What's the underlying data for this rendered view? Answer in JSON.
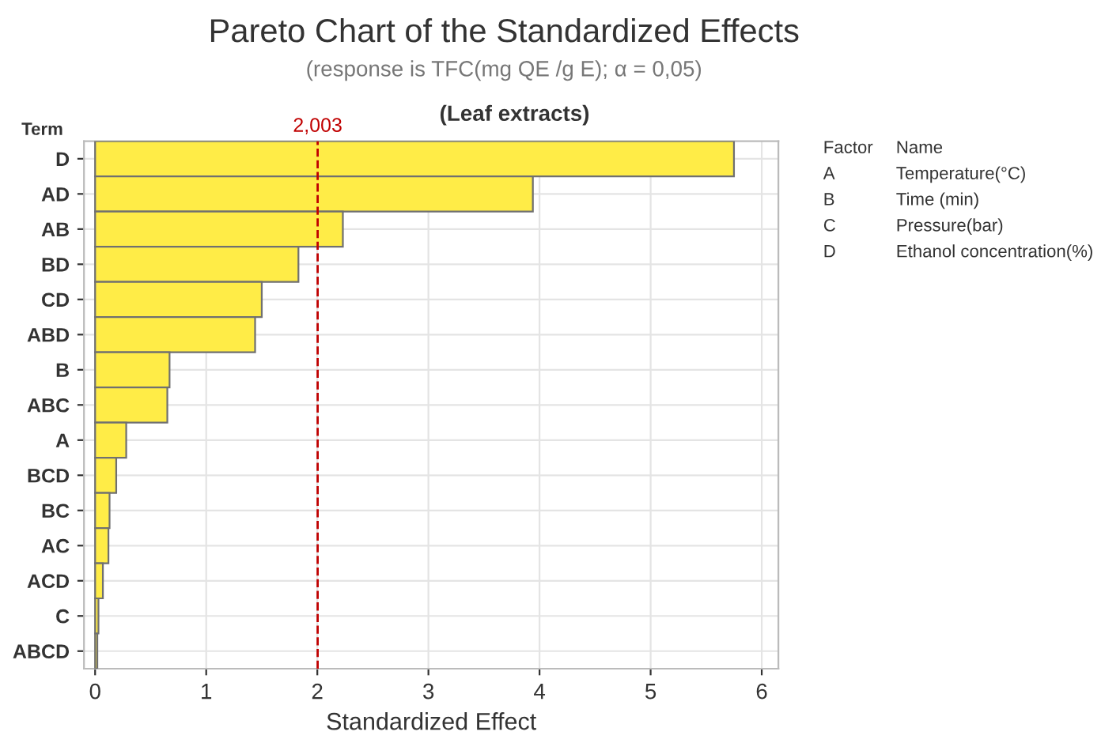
{
  "chart_data": {
    "type": "bar",
    "orientation": "horizontal",
    "title": "Pareto Chart of the Standardized Effects",
    "subtitle": "(response is TFC(mg QE /g E); α = 0,05)",
    "xlabel": "Standardized Effect",
    "ylabel": "Term",
    "categories": [
      "D",
      "AD",
      "AB",
      "BD",
      "CD",
      "ABD",
      "B",
      "ABC",
      "A",
      "BCD",
      "BC",
      "AC",
      "ACD",
      "C",
      "ABCD"
    ],
    "values": [
      5.75,
      3.94,
      2.23,
      1.83,
      1.5,
      1.44,
      0.67,
      0.65,
      0.28,
      0.19,
      0.13,
      0.12,
      0.07,
      0.03,
      0.02
    ],
    "color": "#ffec47",
    "xlim": [
      -0.1,
      6.15
    ],
    "xticks": [
      0,
      1,
      2,
      3,
      4,
      5,
      6
    ],
    "ref_lines": [
      {
        "axis": "x",
        "value": 2.003,
        "label": "2,003",
        "color": "#c00000",
        "line_style": "dashed"
      }
    ],
    "annotations": [
      "(Leaf extracts)",
      "Factor",
      "Name",
      "A",
      "Temperature(°C)",
      "B",
      "Time (min)",
      "C",
      "Pressure(bar)",
      "D",
      "Ethanol concentration(%)"
    ],
    "grid": true
  }
}
